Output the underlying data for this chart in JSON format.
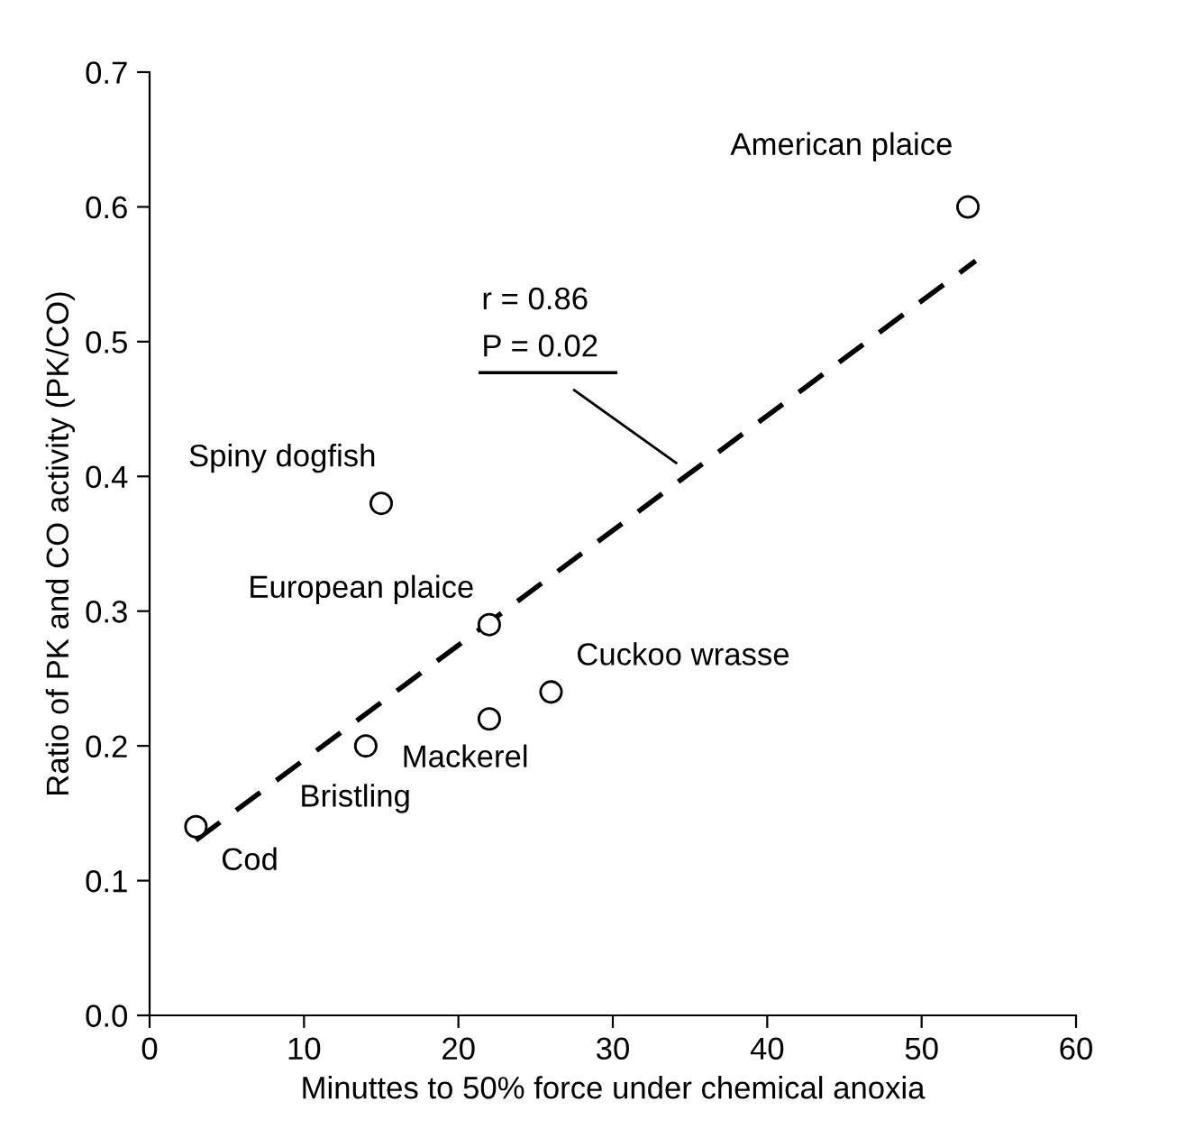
{
  "chart_data": {
    "type": "scatter",
    "xlabel": "Minuttes to 50% force under chemical anoxia",
    "ylabel": "Ratio of PK and CO activity (PK/CO)",
    "xlim": [
      0,
      60
    ],
    "xticks": [
      0,
      10,
      20,
      30,
      40,
      50,
      60
    ],
    "ylim": [
      0,
      0.7
    ],
    "yticks": [
      {
        "value": 0,
        "label": "0.0"
      },
      {
        "value": 0.1,
        "label": "0.1"
      },
      {
        "value": 0.2,
        "label": "0.2"
      },
      {
        "value": 0.3,
        "label": "0.3"
      },
      {
        "value": 0.4,
        "label": "0.4"
      },
      {
        "value": 0.5,
        "label": "0.5"
      },
      {
        "value": 0.6,
        "label": "0.6"
      },
      {
        "value": 0.7,
        "label": "0.7"
      }
    ],
    "grid": false,
    "series": [
      {
        "color": "#000000",
        "marker": "circle",
        "x": [
          3,
          14,
          15,
          22,
          22,
          26,
          53
        ],
        "values": [
          0.14,
          0.2,
          0.38,
          0.29,
          0.22,
          0.24,
          0.6
        ]
      },
      {
        "type": "line",
        "color": "#000000",
        "line_style": "dashed",
        "marker": "none",
        "x": [
          3,
          53.5
        ],
        "values": [
          0.13,
          0.56
        ]
      }
    ],
    "annotations": [
      {
        "text": "Cod",
        "x": 3,
        "y": 0.14
      },
      {
        "text": "Bristling",
        "x": 14,
        "y": 0.2
      },
      {
        "text": "Spiny dogfish",
        "x": 15,
        "y": 0.38
      },
      {
        "text": "European plaice",
        "x": 22,
        "y": 0.29
      },
      {
        "text": "Mackerel",
        "x": 22,
        "y": 0.22
      },
      {
        "text": "Cuckoo wrasse",
        "x": 26,
        "y": 0.24
      },
      {
        "text": "American plaice",
        "x": 53,
        "y": 0.6
      },
      "r = 0.86",
      "P = 0.02"
    ]
  }
}
